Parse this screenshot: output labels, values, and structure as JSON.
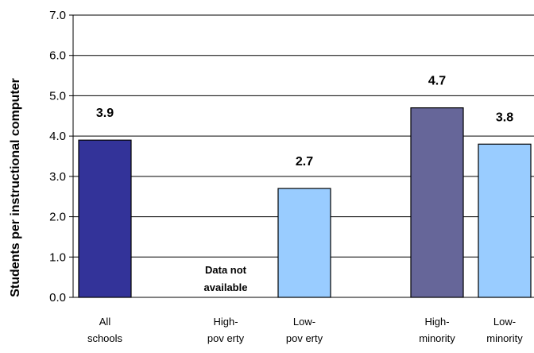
{
  "chart_data": {
    "type": "bar",
    "title": "",
    "xlabel": "",
    "ylabel": "Students per instructional computer",
    "ylim": [
      0,
      7
    ],
    "yticks": [
      "0.0",
      "1.0",
      "2.0",
      "3.0",
      "4.0",
      "5.0",
      "6.0",
      "7.0"
    ],
    "grid": true,
    "categories": [
      [
        "All",
        "schools"
      ],
      [
        "High-",
        "pov erty"
      ],
      [
        "Low-",
        "pov erty"
      ],
      [
        "High-",
        "minority"
      ],
      [
        "Low-",
        "minority"
      ]
    ],
    "values": [
      3.9,
      null,
      2.7,
      4.7,
      3.8
    ],
    "value_labels": [
      "3.9",
      "",
      "2.7",
      "4.7",
      "3.8"
    ],
    "colors": [
      "#333399",
      "#99ccff",
      "#99ccff",
      "#666699",
      "#99ccff"
    ],
    "not_available_note": [
      "Data not",
      "available"
    ]
  }
}
